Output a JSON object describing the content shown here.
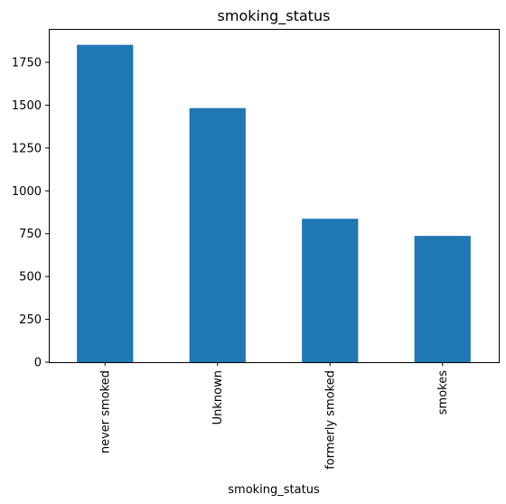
{
  "chart_data": {
    "type": "bar",
    "title": "smoking_status",
    "xlabel": "smoking_status",
    "ylabel": "",
    "categories": [
      "never smoked",
      "Unknown",
      "formerly smoked",
      "smokes"
    ],
    "values": [
      1852,
      1483,
      837,
      737
    ],
    "ylim": [
      0,
      1945
    ],
    "yticks": [
      0,
      250,
      500,
      750,
      1000,
      1250,
      1500,
      1750
    ],
    "ytick_labels": [
      "0",
      "250",
      "500",
      "750",
      "1000",
      "1250",
      "1500",
      "1750"
    ],
    "grid": false,
    "legend": "none",
    "bar_color": "#1f77b4",
    "xtick_rotation": "vertical"
  }
}
